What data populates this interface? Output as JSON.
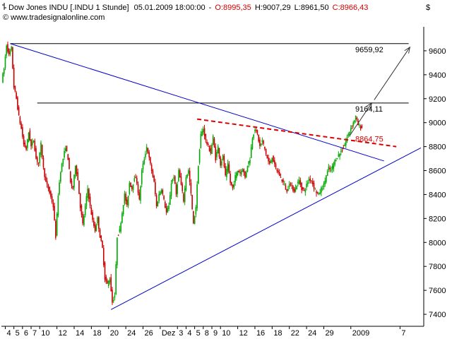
{
  "header": {
    "icon": "bar-chart-icon",
    "instrument": "Dow Jones INDU [.INDU  1 Stunde]",
    "timestamp": "05.01.2009 18:00:00",
    "open": "O:8995,35",
    "high": "H:9007,29",
    "low": "L:8961,50",
    "close": "C:8966,43",
    "source": "© www.tradesignalonline.com",
    "currency": "$"
  },
  "colors": {
    "up": "#00aa00",
    "down": "#cc0000",
    "trend": "#0000cc",
    "resistance": "#000000",
    "dashed": "#dd0000",
    "arrow": "#333333"
  },
  "chart_data": {
    "type": "candlestick",
    "title": "Dow Jones INDU [.INDU  1 Stunde]",
    "ylim": [
      7300,
      9800
    ],
    "y_ticks": [
      {
        "label": "9600",
        "value": 9600
      },
      {
        "label": "9400",
        "value": 9400
      },
      {
        "label": "9200",
        "value": 9200
      },
      {
        "label": "9000",
        "value": 9000
      },
      {
        "label": "8800",
        "value": 8800
      },
      {
        "label": "8600",
        "value": 8600
      },
      {
        "label": "8400",
        "value": 8400
      },
      {
        "label": "8200",
        "value": 8200
      },
      {
        "label": "8000",
        "value": 8000
      },
      {
        "label": "7800",
        "value": 7800
      },
      {
        "label": "7600",
        "value": 7600
      },
      {
        "label": "7400",
        "value": 7400
      }
    ],
    "x_ticks": [
      {
        "label": "4",
        "i": 2
      },
      {
        "label": "5",
        "i": 9
      },
      {
        "label": "6",
        "i": 16
      },
      {
        "label": "7",
        "i": 23
      },
      {
        "label": "10",
        "i": 30
      },
      {
        "label": "12",
        "i": 44
      },
      {
        "label": "14",
        "i": 58
      },
      {
        "label": "18",
        "i": 72
      },
      {
        "label": "20",
        "i": 86
      },
      {
        "label": "24",
        "i": 100
      },
      {
        "label": "26",
        "i": 114
      },
      {
        "label": "Dez",
        "i": 128
      },
      {
        "label": "3",
        "i": 142
      },
      {
        "label": "4",
        "i": 149
      },
      {
        "label": "5",
        "i": 156
      },
      {
        "label": "8",
        "i": 163
      },
      {
        "label": "9",
        "i": 170
      },
      {
        "label": "10",
        "i": 177
      },
      {
        "label": "12",
        "i": 191
      },
      {
        "label": "16",
        "i": 205
      },
      {
        "label": "18",
        "i": 219
      },
      {
        "label": "22",
        "i": 233
      },
      {
        "label": "24",
        "i": 247
      },
      {
        "label": "29",
        "i": 261
      },
      {
        "label": "2009",
        "i": 283
      },
      {
        "label": "7",
        "i": 323
      }
    ],
    "x_range": [
      0,
      340
    ],
    "anchors": [
      [
        0,
        9350
      ],
      [
        2,
        9450
      ],
      [
        4,
        9650
      ],
      [
        6,
        9560
      ],
      [
        8,
        9620
      ],
      [
        10,
        9300
      ],
      [
        12,
        9200
      ],
      [
        14,
        9050
      ],
      [
        16,
        8950
      ],
      [
        18,
        8820
      ],
      [
        20,
        8780
      ],
      [
        22,
        8920
      ],
      [
        24,
        8800
      ],
      [
        26,
        8860
      ],
      [
        28,
        8700
      ],
      [
        30,
        8660
      ],
      [
        32,
        8820
      ],
      [
        34,
        8620
      ],
      [
        36,
        8500
      ],
      [
        38,
        8450
      ],
      [
        40,
        8380
      ],
      [
        42,
        8300
      ],
      [
        44,
        8050
      ],
      [
        46,
        8400
      ],
      [
        48,
        8600
      ],
      [
        50,
        8700
      ],
      [
        52,
        8800
      ],
      [
        54,
        8700
      ],
      [
        56,
        8500
      ],
      [
        58,
        8450
      ],
      [
        60,
        8650
      ],
      [
        62,
        8520
      ],
      [
        64,
        8300
      ],
      [
        66,
        8150
      ],
      [
        68,
        8300
      ],
      [
        70,
        8450
      ],
      [
        72,
        8300
      ],
      [
        74,
        8180
      ],
      [
        76,
        8100
      ],
      [
        78,
        8200
      ],
      [
        80,
        8050
      ],
      [
        82,
        7950
      ],
      [
        84,
        7700
      ],
      [
        86,
        7650
      ],
      [
        88,
        7700
      ],
      [
        90,
        7500
      ],
      [
        92,
        7560
      ],
      [
        94,
        8050
      ],
      [
        96,
        8100
      ],
      [
        98,
        8250
      ],
      [
        100,
        8400
      ],
      [
        102,
        8300
      ],
      [
        104,
        8500
      ],
      [
        106,
        8450
      ],
      [
        108,
        8550
      ],
      [
        110,
        8500
      ],
      [
        112,
        8350
      ],
      [
        114,
        8600
      ],
      [
        116,
        8700
      ],
      [
        118,
        8800
      ],
      [
        120,
        8700
      ],
      [
        122,
        8600
      ],
      [
        124,
        8500
      ],
      [
        126,
        8300
      ],
      [
        128,
        8400
      ],
      [
        130,
        8450
      ],
      [
        132,
        8350
      ],
      [
        134,
        8250
      ],
      [
        136,
        8300
      ],
      [
        138,
        8500
      ],
      [
        140,
        8550
      ],
      [
        142,
        8400
      ],
      [
        144,
        8600
      ],
      [
        146,
        8480
      ],
      [
        148,
        8350
      ],
      [
        150,
        8550
      ],
      [
        152,
        8600
      ],
      [
        154,
        8400
      ],
      [
        156,
        8150
      ],
      [
        158,
        8300
      ],
      [
        160,
        8650
      ],
      [
        162,
        8900
      ],
      [
        164,
        8950
      ],
      [
        166,
        8850
      ],
      [
        168,
        8800
      ],
      [
        170,
        8750
      ],
      [
        172,
        8880
      ],
      [
        174,
        8700
      ],
      [
        176,
        8800
      ],
      [
        178,
        8650
      ],
      [
        180,
        8720
      ],
      [
        182,
        8550
      ],
      [
        184,
        8650
      ],
      [
        186,
        8500
      ],
      [
        188,
        8450
      ],
      [
        190,
        8550
      ],
      [
        192,
        8600
      ],
      [
        194,
        8580
      ],
      [
        196,
        8620
      ],
      [
        198,
        8540
      ],
      [
        200,
        8650
      ],
      [
        202,
        8700
      ],
      [
        204,
        8880
      ],
      [
        206,
        8950
      ],
      [
        208,
        8900
      ],
      [
        210,
        8800
      ],
      [
        212,
        8850
      ],
      [
        214,
        8780
      ],
      [
        216,
        8700
      ],
      [
        218,
        8650
      ],
      [
        220,
        8720
      ],
      [
        222,
        8640
      ],
      [
        224,
        8600
      ],
      [
        226,
        8560
      ],
      [
        228,
        8520
      ],
      [
        230,
        8480
      ],
      [
        232,
        8420
      ],
      [
        234,
        8500
      ],
      [
        236,
        8460
      ],
      [
        238,
        8430
      ],
      [
        240,
        8480
      ],
      [
        242,
        8520
      ],
      [
        244,
        8450
      ],
      [
        246,
        8430
      ],
      [
        248,
        8480
      ],
      [
        250,
        8530
      ],
      [
        252,
        8520
      ],
      [
        254,
        8460
      ],
      [
        256,
        8420
      ],
      [
        258,
        8400
      ],
      [
        260,
        8450
      ],
      [
        262,
        8480
      ],
      [
        264,
        8560
      ],
      [
        266,
        8620
      ],
      [
        268,
        8600
      ],
      [
        270,
        8660
      ],
      [
        272,
        8700
      ],
      [
        274,
        8730
      ],
      [
        276,
        8760
      ],
      [
        278,
        8790
      ],
      [
        280,
        8850
      ],
      [
        282,
        8900
      ],
      [
        284,
        8960
      ],
      [
        286,
        9000
      ],
      [
        288,
        9050
      ],
      [
        290,
        8980
      ],
      [
        292,
        8960
      ]
    ],
    "annotations": {
      "label_9659": {
        "text": "9659,92",
        "value": 9659.92,
        "color": "#000000"
      },
      "label_9164": {
        "text": "9164,11",
        "value": 9164.11,
        "color": "#000000"
      },
      "label_8864": {
        "text": "8864,75",
        "value": 8864.75,
        "color": "#dd0000"
      }
    },
    "horizontal_lines": [
      {
        "name": "resistance-9659",
        "value": 9659.92,
        "i_from": 6,
        "i_to": 330
      },
      {
        "name": "resistance-9164",
        "value": 9164.11,
        "i_from": 28,
        "i_to": 330
      }
    ],
    "trend_lines": [
      {
        "name": "descending-trendline",
        "from": [
          6,
          9660
        ],
        "to": [
          310,
          8680
        ],
        "color": "#0000cc",
        "dashed": false
      },
      {
        "name": "ascending-trendline",
        "from": [
          88,
          7440
        ],
        "to": [
          340,
          8790
        ],
        "color": "#0000cc",
        "dashed": false
      },
      {
        "name": "dashed-resistance",
        "from": [
          158,
          9030
        ],
        "to": [
          320,
          8800
        ],
        "color": "#dd0000",
        "dashed": true
      }
    ],
    "arrows": [
      {
        "name": "target-arrow-9164",
        "from": [
          282,
          8890
        ],
        "to": [
          300,
          9165
        ]
      },
      {
        "name": "target-arrow-9659",
        "from": [
          302,
          9190
        ],
        "to": [
          331,
          9630
        ]
      }
    ]
  }
}
